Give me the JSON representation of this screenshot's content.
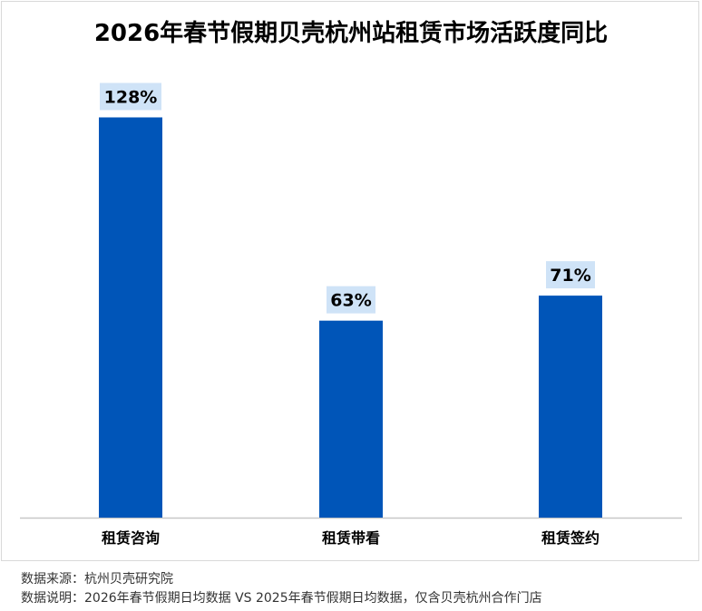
{
  "colors": {
    "bar": "#0055b8",
    "label_bg": "#cfe3f7",
    "axis": "#c8c8c8",
    "text": "#000000"
  },
  "chart_data": {
    "type": "bar",
    "title": "2026年春节假期贝壳杭州站租赁市场活跃度同比",
    "categories": [
      "租赁咨询",
      "租赁带看",
      "租赁签约"
    ],
    "values": [
      128,
      63,
      71
    ],
    "value_labels": [
      "128%",
      "63%",
      "71%"
    ],
    "unit": "%",
    "ylim": [
      0,
      138
    ],
    "grid": false,
    "legend": "none"
  },
  "footer": {
    "source": "数据来源：杭州贝壳研究院",
    "note": "数据说明：2026年春节假期日均数据 VS 2025年春节假期日均数据，仅含贝壳杭州合作门店"
  }
}
